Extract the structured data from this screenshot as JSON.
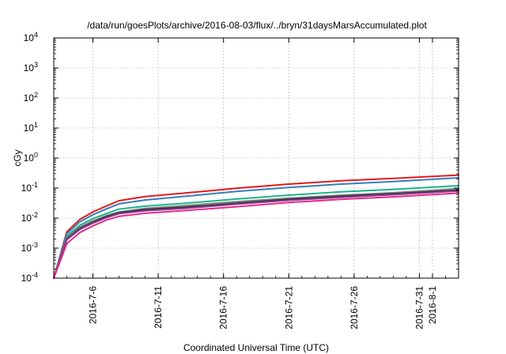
{
  "chart_data": {
    "type": "line",
    "title": "/data/run/goesPlots/archive/2016-08-03/flux/../bryn/31daysMarsAccumulated.plot",
    "xlabel": "Coordinated Universal Time (UTC)",
    "ylabel": "cGy",
    "yscale": "log",
    "ylim": [
      0.0001,
      10000
    ],
    "xlim": [
      "2016-07-03",
      "2016-08-03"
    ],
    "grid": true,
    "x_tick_labels": [
      "2016-7-6",
      "2016-7-11",
      "2016-7-16",
      "2016-7-21",
      "2016-7-26",
      "2016-7-31",
      "2016-8-1"
    ],
    "x_tick_dates": [
      "2016-07-06",
      "2016-07-11",
      "2016-07-16",
      "2016-07-21",
      "2016-07-26",
      "2016-07-31",
      "2016-08-01"
    ],
    "y_ticks": [
      {
        "base": "10",
        "exp": "-4",
        "value": 0.0001
      },
      {
        "base": "10",
        "exp": "-3",
        "value": 0.001
      },
      {
        "base": "10",
        "exp": "-2",
        "value": 0.01
      },
      {
        "base": "10",
        "exp": "-1",
        "value": 0.1
      },
      {
        "base": "10",
        "exp": "0",
        "value": 1
      },
      {
        "base": "10",
        "exp": "1",
        "value": 10
      },
      {
        "base": "10",
        "exp": "2",
        "value": 100
      },
      {
        "base": "10",
        "exp": "3",
        "value": 1000
      },
      {
        "base": "10",
        "exp": "4",
        "value": 10000
      }
    ],
    "x": [
      "2016-07-04",
      "2016-07-05",
      "2016-07-06",
      "2016-07-07",
      "2016-07-08",
      "2016-07-10",
      "2016-07-13",
      "2016-07-17",
      "2016-07-21",
      "2016-07-25",
      "2016-07-29",
      "2016-08-03"
    ],
    "series": [
      {
        "color": "#e41a1c",
        "values": [
          0.0035,
          0.009,
          0.016,
          0.025,
          0.038,
          0.052,
          0.068,
          0.098,
          0.135,
          0.175,
          0.21,
          0.27
        ]
      },
      {
        "color": "#377eb8",
        "values": [
          0.003,
          0.0075,
          0.013,
          0.02,
          0.03,
          0.04,
          0.053,
          0.077,
          0.105,
          0.135,
          0.165,
          0.22
        ]
      },
      {
        "color": "#1ab58a",
        "values": [
          0.0025,
          0.0058,
          0.0095,
          0.014,
          0.02,
          0.025,
          0.031,
          0.043,
          0.058,
          0.075,
          0.09,
          0.12
        ]
      },
      {
        "color": "#7f7f7f",
        "values": [
          0.0022,
          0.005,
          0.008,
          0.012,
          0.016,
          0.021,
          0.026,
          0.035,
          0.046,
          0.058,
          0.07,
          0.095
        ]
      },
      {
        "color": "#2b2b3a",
        "values": [
          0.002,
          0.0045,
          0.0072,
          0.011,
          0.015,
          0.019,
          0.023,
          0.031,
          0.042,
          0.053,
          0.064,
          0.085
        ]
      },
      {
        "color": "#8e3a8e",
        "values": [
          0.0019,
          0.0042,
          0.0068,
          0.0102,
          0.014,
          0.0175,
          0.021,
          0.029,
          0.039,
          0.049,
          0.06,
          0.08
        ]
      },
      {
        "color": "#e7298a",
        "values": [
          0.0014,
          0.0033,
          0.0055,
          0.0085,
          0.0115,
          0.0145,
          0.0178,
          0.024,
          0.033,
          0.042,
          0.051,
          0.068
        ]
      }
    ]
  }
}
